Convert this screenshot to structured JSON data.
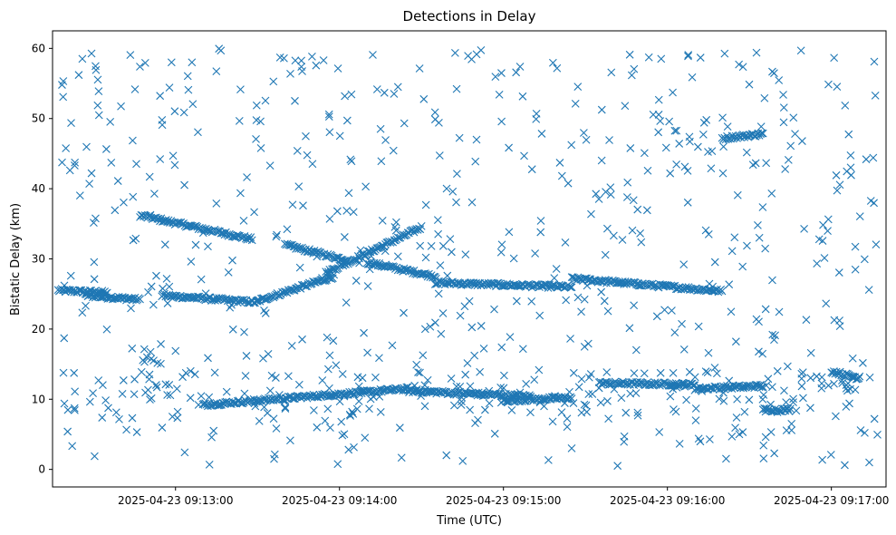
{
  "chart_data": {
    "type": "scatter",
    "title": "Detections in Delay",
    "xlabel": "Time (UTC)",
    "ylabel": "Bistatic Delay (km)",
    "x_ticks": [
      "2025-04-23 09:13:00",
      "2025-04-23 09:14:00",
      "2025-04-23 09:15:00",
      "2025-04-23 09:16:00",
      "2025-04-23 09:17:00"
    ],
    "y_ticks": [
      "0",
      "10",
      "20",
      "30",
      "40",
      "50",
      "60"
    ],
    "xlim": [
      "2025-04-23 09:12:15",
      "2025-04-23 09:17:20"
    ],
    "ylim": [
      -2.5,
      62.5
    ],
    "grid": false,
    "marker": "x",
    "color": "#1f77b4",
    "tracks": [
      {
        "t_start": "2025-04-23 09:12:17",
        "t_end": "2025-04-23 09:12:35",
        "y_start": 25.5,
        "y_end": 25.2
      },
      {
        "t_start": "2025-04-23 09:12:27",
        "t_end": "2025-04-23 09:12:47",
        "y_start": 24.8,
        "y_end": 24.2
      },
      {
        "t_start": "2025-04-23 09:12:47",
        "t_end": "2025-04-23 09:13:28",
        "y_start": 36.2,
        "y_end": 32.8
      },
      {
        "t_start": "2025-04-23 09:12:55",
        "t_end": "2025-04-23 09:13:30",
        "y_start": 24.8,
        "y_end": 23.8
      },
      {
        "t_start": "2025-04-23 09:13:30",
        "t_end": "2025-04-23 09:13:58",
        "y_start": 24.0,
        "y_end": 27.5
      },
      {
        "t_start": "2025-04-23 09:13:40",
        "t_end": "2025-04-23 09:14:03",
        "y_start": 32.0,
        "y_end": 29.8
      },
      {
        "t_start": "2025-04-23 09:13:55",
        "t_end": "2025-04-23 09:14:30",
        "y_start": 28.0,
        "y_end": 34.5
      },
      {
        "t_start": "2025-04-23 09:14:10",
        "t_end": "2025-04-23 09:14:35",
        "y_start": 29.5,
        "y_end": 27.5
      },
      {
        "t_start": "2025-04-23 09:14:35",
        "t_end": "2025-04-23 09:15:25",
        "y_start": 26.6,
        "y_end": 26.0
      },
      {
        "t_start": "2025-04-23 09:15:25",
        "t_end": "2025-04-23 09:16:20",
        "y_start": 27.2,
        "y_end": 25.4
      },
      {
        "t_start": "2025-04-23 09:16:20",
        "t_end": "2025-04-23 09:16:35",
        "y_start": 47.2,
        "y_end": 47.8
      },
      {
        "t_start": "2025-04-23 09:13:10",
        "t_end": "2025-04-23 09:14:25",
        "y_start": 9.2,
        "y_end": 11.5
      },
      {
        "t_start": "2025-04-23 09:14:25",
        "t_end": "2025-04-23 09:15:10",
        "y_start": 11.2,
        "y_end": 10.4
      },
      {
        "t_start": "2025-04-23 09:15:00",
        "t_end": "2025-04-23 09:15:25",
        "y_start": 9.8,
        "y_end": 10.2
      },
      {
        "t_start": "2025-04-23 09:15:35",
        "t_end": "2025-04-23 09:16:10",
        "y_start": 12.3,
        "y_end": 12.1
      },
      {
        "t_start": "2025-04-23 09:16:10",
        "t_end": "2025-04-23 09:16:35",
        "y_start": 11.5,
        "y_end": 11.9
      },
      {
        "t_start": "2025-04-23 09:16:35",
        "t_end": "2025-04-23 09:16:45",
        "y_start": 8.5,
        "y_end": 8.5
      },
      {
        "t_start": "2025-04-23 09:17:00",
        "t_end": "2025-04-23 09:17:10",
        "y_start": 14.0,
        "y_end": 13.0
      }
    ]
  }
}
